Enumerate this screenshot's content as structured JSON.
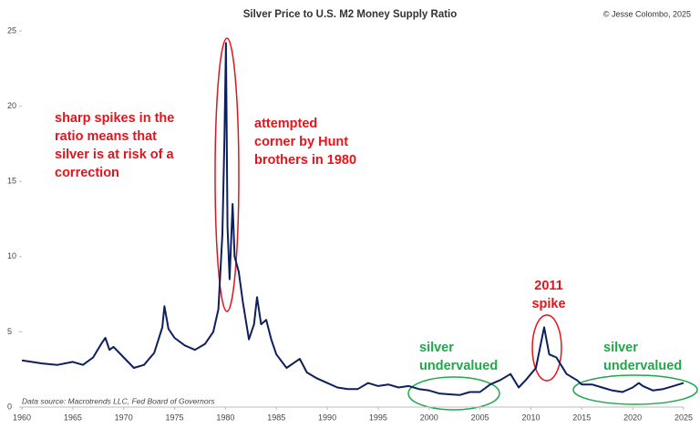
{
  "chart_data": {
    "type": "line",
    "title": "Silver Price to U.S. M2 Money Supply Ratio",
    "credit": "© Jesse Colombo, 2025",
    "source": "Data source: Macrotrends LLC, Fed Board of Governors",
    "color": "#0d1f5c",
    "x": [
      1960,
      1962,
      1963.5,
      1965,
      1966,
      1967,
      1967.8,
      1968.2,
      1968.6,
      1969,
      1970,
      1971,
      1972,
      1973,
      1973.8,
      1974,
      1974.4,
      1975,
      1976,
      1977,
      1978,
      1978.8,
      1979.3,
      1979.7,
      1979.9,
      1980.05,
      1980.2,
      1980.4,
      1980.7,
      1980.9,
      1981.3,
      1981.7,
      1982.3,
      1982.8,
      1983.1,
      1983.5,
      1984,
      1984.5,
      1985,
      1986,
      1987.3,
      1988,
      1989,
      1990,
      1991,
      1992,
      1993,
      1994,
      1995,
      1996,
      1997,
      1998,
      1999,
      2000,
      2001,
      2002,
      2003,
      2004,
      2005,
      2006,
      2007,
      2008,
      2008.8,
      2009.5,
      2010.5,
      2011.3,
      2011.8,
      2012.5,
      2013.5,
      2014.5,
      2015,
      2016,
      2017,
      2018,
      2019,
      2020,
      2020.6,
      2021,
      2022,
      2023,
      2024,
      2025
    ],
    "values": [
      3.1,
      2.9,
      2.8,
      3.0,
      2.8,
      3.3,
      4.2,
      4.6,
      3.8,
      4.0,
      3.3,
      2.6,
      2.8,
      3.6,
      5.3,
      6.7,
      5.2,
      4.6,
      4.1,
      3.8,
      4.2,
      5.0,
      6.5,
      11.5,
      18,
      24.2,
      12,
      8.5,
      13.5,
      10,
      9,
      7,
      4.5,
      5.5,
      7.3,
      5.5,
      5.8,
      4.5,
      3.5,
      2.6,
      3.2,
      2.3,
      1.9,
      1.6,
      1.3,
      1.2,
      1.2,
      1.6,
      1.4,
      1.5,
      1.3,
      1.4,
      1.2,
      1.1,
      0.9,
      0.85,
      0.8,
      1.0,
      1.0,
      1.5,
      1.8,
      2.2,
      1.3,
      1.8,
      2.6,
      5.3,
      3.5,
      3.3,
      2.2,
      1.8,
      1.5,
      1.5,
      1.3,
      1.1,
      1.0,
      1.3,
      1.6,
      1.4,
      1.1,
      1.2,
      1.4,
      1.6
    ],
    "xlim": [
      1960,
      2025
    ],
    "xticks": [
      1960,
      1965,
      1970,
      1975,
      1980,
      1985,
      1990,
      1995,
      2000,
      2005,
      2010,
      2015,
      2020,
      2025
    ],
    "ylim": [
      0,
      25
    ],
    "yticks": [
      0,
      5,
      10,
      15,
      20,
      25
    ],
    "annotations": [
      {
        "lines": [
          "sharp spikes in the",
          "ratio means that",
          "silver is at risk of a",
          "correction"
        ],
        "color": "#e3141b"
      },
      {
        "lines": [
          "attempted",
          "corner by Hunt",
          "brothers in 1980"
        ],
        "color": "#e3141b"
      },
      {
        "lines": [
          "2011",
          "spike"
        ],
        "color": "#e3141b"
      },
      {
        "lines": [
          "silver",
          "undervalued"
        ],
        "color": "#1fa84a"
      },
      {
        "lines": [
          "silver",
          "undervalued"
        ],
        "color": "#1fa84a"
      }
    ]
  }
}
